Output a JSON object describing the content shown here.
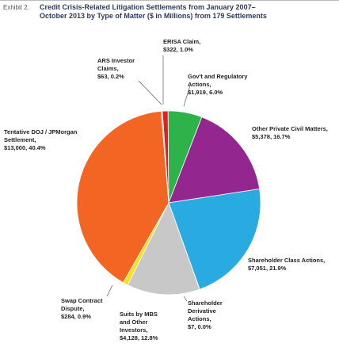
{
  "exhibit": "Exhibit 2.",
  "chart_data": {
    "type": "pie",
    "title": "Credit Crisis-Related Litigation Settlements from January 2007–October 2013 by Type of Matter ($ in Millions) from 179 Settlements",
    "categories": [
      "ERISA Claim,",
      "Gov't and Regulatory Actions,",
      "Other Private Civil Matters,",
      "Shareholder Class Actions,",
      "Shareholder Derivative Actions,",
      "Suits by MBS and Other Investors,",
      "Swap Contract Dispute,",
      "Tentative DOJ / JPMorgan Settlement,",
      "ARS Investor Claims,"
    ],
    "values": [
      322,
      1919,
      5378,
      7051,
      7,
      4128,
      284,
      13000,
      63
    ],
    "value_labels": [
      "$322,",
      "$1,919,",
      "$5,378,",
      "$7,051,",
      "$7,",
      "$4,128,",
      "$284,",
      "$13,000,",
      "$63,"
    ],
    "percents": [
      1.0,
      6.0,
      16.7,
      21.9,
      0.0,
      12.8,
      0.9,
      40.4,
      0.2
    ],
    "percent_labels": [
      "1.0%",
      "6.0%",
      "16.7%",
      "21.9%",
      "0.0%",
      "12.8%",
      "0.9%",
      "40.4%",
      "0.2%"
    ],
    "colors": [
      "#e31e24",
      "#2db34a",
      "#93278f",
      "#29abe2",
      "#555555",
      "#c8c8c8",
      "#f7e11a",
      "#f26522",
      "#9e9e9e"
    ]
  }
}
